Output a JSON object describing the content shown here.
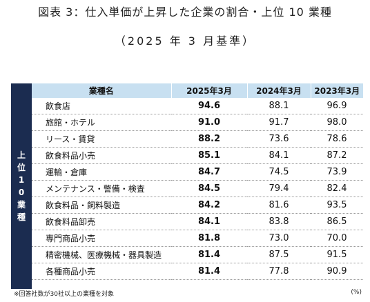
{
  "title": "図表 3：仕入単価が上昇した企業の割合・上位 10 業種",
  "subtitle": "（2025 年 3 月基準）",
  "side_label": "上位10業種",
  "columns": [
    "業種名",
    "2025年3月",
    "2024年3月",
    "2023年3月"
  ],
  "rows": [
    {
      "name": "飲食店",
      "v2025": "94.6",
      "v2024": "88.1",
      "v2023": "96.9"
    },
    {
      "name": "旅館・ホテル",
      "v2025": "91.0",
      "v2024": "91.7",
      "v2023": "98.0"
    },
    {
      "name": "リース・賃貸",
      "v2025": "88.2",
      "v2024": "73.6",
      "v2023": "78.6"
    },
    {
      "name": "飲食料品小売",
      "v2025": "85.1",
      "v2024": "84.1",
      "v2023": "87.2"
    },
    {
      "name": "運輸・倉庫",
      "v2025": "84.7",
      "v2024": "74.5",
      "v2023": "73.9"
    },
    {
      "name": "メンテナンス・警備・検査",
      "v2025": "84.5",
      "v2024": "79.4",
      "v2023": "82.4"
    },
    {
      "name": "飲食料品・飼料製造",
      "v2025": "84.2",
      "v2024": "81.6",
      "v2023": "93.5"
    },
    {
      "name": "飲食料品卸売",
      "v2025": "84.1",
      "v2024": "83.8",
      "v2023": "86.5"
    },
    {
      "name": "専門商品小売",
      "v2025": "81.8",
      "v2024": "73.0",
      "v2023": "70.0"
    },
    {
      "name": "精密機械、医療機械・器具製造",
      "v2025": "81.4",
      "v2024": "87.5",
      "v2023": "91.5"
    },
    {
      "name": "各種商品小売",
      "v2025": "81.4",
      "v2024": "77.8",
      "v2023": "90.9"
    }
  ],
  "note": "※回答社数が30社以上の業種を対象",
  "unit": "(%)",
  "colors": {
    "header_bg": "#c8e0f1",
    "side_bg": "#1b2c50"
  }
}
